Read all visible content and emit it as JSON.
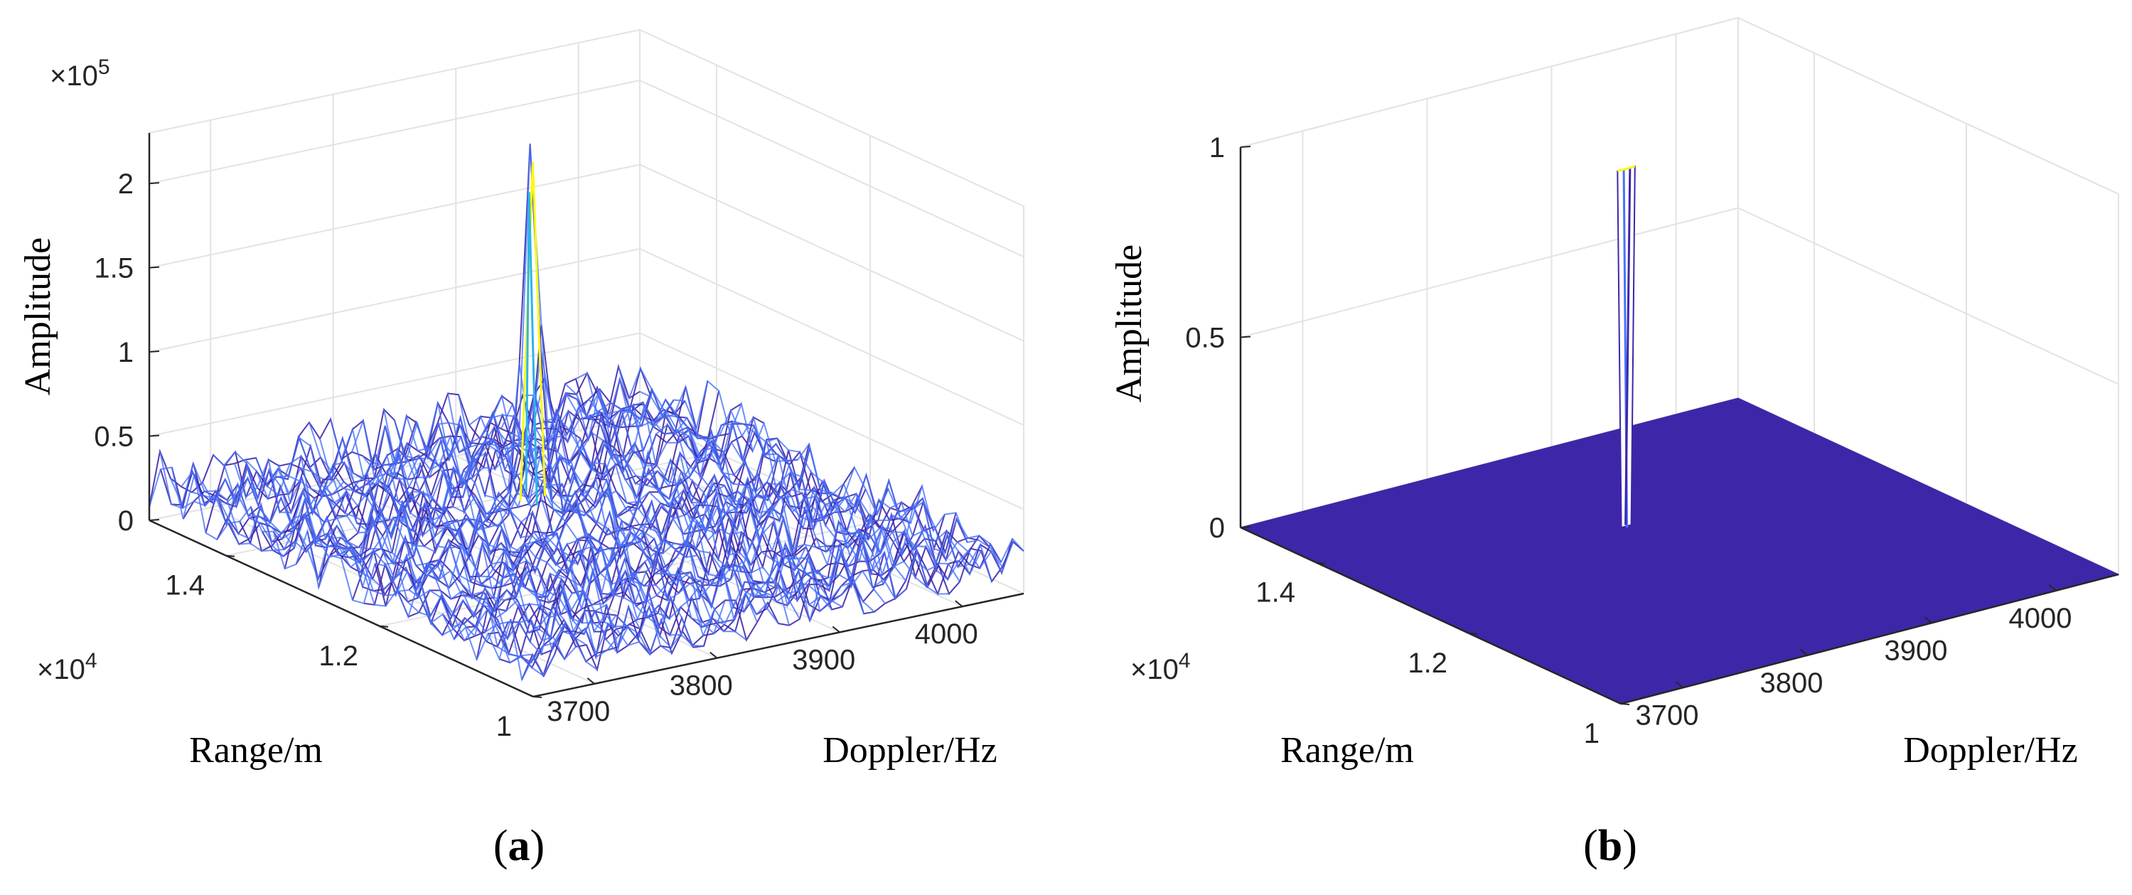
{
  "chart_data": [
    {
      "type": "surface",
      "panel_label": "a",
      "zlabel": "Amplitude",
      "xlabel": "Doppler/Hz",
      "ylabel": "Range/m",
      "z_exponent_label": "×10",
      "z_exponent_power": "5",
      "y_exponent_label": "×10",
      "y_exponent_power": "4",
      "x_ticks": [
        "3700",
        "3800",
        "3900",
        "4000"
      ],
      "y_ticks": [
        "1",
        "1.2",
        "1.4"
      ],
      "z_ticks": [
        "0",
        "0.5",
        "1",
        "1.5",
        "2"
      ],
      "x_range": [
        3650,
        4050
      ],
      "y_range": [
        10000,
        15000
      ],
      "z_range": [
        0,
        230000
      ],
      "noise_level": 40000,
      "peak": {
        "doppler": 3850,
        "range": 13200,
        "amplitude": 220000
      },
      "colormap": [
        "#3e26a8",
        "#4772fa",
        "#2db4e8",
        "#f9fb0e"
      ]
    },
    {
      "type": "surface",
      "panel_label": "b",
      "zlabel": "Amplitude",
      "xlabel": "Doppler/Hz",
      "ylabel": "Range/m",
      "y_exponent_label": "×10",
      "y_exponent_power": "4",
      "x_ticks": [
        "3700",
        "3800",
        "3900",
        "4000"
      ],
      "y_ticks": [
        "1",
        "1.2",
        "1.4"
      ],
      "z_ticks": [
        "0",
        "0.5",
        "1"
      ],
      "x_range": [
        3650,
        4050
      ],
      "y_range": [
        10000,
        15000
      ],
      "z_range": [
        0,
        1
      ],
      "noise_level": 0,
      "peak": {
        "doppler": 3850,
        "range": 13200,
        "amplitude": 1
      },
      "colormap": [
        "#3e26a8",
        "#4772fa",
        "#2db4e8",
        "#f9fb0e"
      ]
    }
  ]
}
